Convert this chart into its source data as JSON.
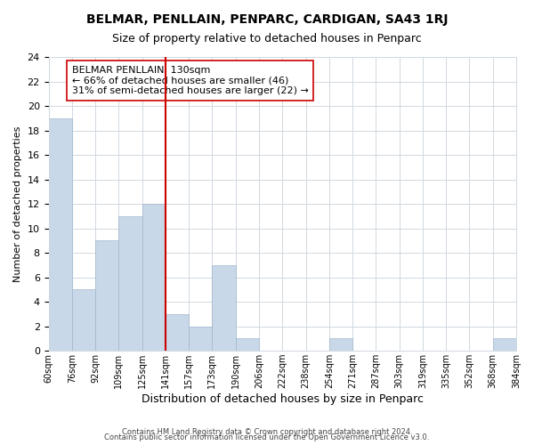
{
  "title": "BELMAR, PENLLAIN, PENPARC, CARDIGAN, SA43 1RJ",
  "subtitle": "Size of property relative to detached houses in Penparc",
  "xlabel": "Distribution of detached houses by size in Penparc",
  "ylabel": "Number of detached properties",
  "bar_color": "#c8d8e8",
  "bar_edgecolor": "#a0b8cc",
  "bins": [
    "60sqm",
    "76sqm",
    "92sqm",
    "109sqm",
    "125sqm",
    "141sqm",
    "157sqm",
    "173sqm",
    "190sqm",
    "206sqm",
    "222sqm",
    "238sqm",
    "254sqm",
    "271sqm",
    "287sqm",
    "303sqm",
    "319sqm",
    "335sqm",
    "352sqm",
    "368sqm",
    "384sqm"
  ],
  "values": [
    19,
    5,
    9,
    11,
    12,
    3,
    2,
    7,
    1,
    0,
    0,
    0,
    1,
    0,
    0,
    0,
    0,
    0,
    0,
    1
  ],
  "vline_x": 4.5,
  "vline_color": "#cc0000",
  "annotation_title": "BELMAR PENLLAIN: 130sqm",
  "annotation_line1": "← 66% of detached houses are smaller (46)",
  "annotation_line2": "31% of semi-detached houses are larger (22) →",
  "ylim": [
    0,
    24
  ],
  "yticks": [
    0,
    2,
    4,
    6,
    8,
    10,
    12,
    14,
    16,
    18,
    20,
    22,
    24
  ],
  "footer1": "Contains HM Land Registry data © Crown copyright and database right 2024.",
  "footer2": "Contains public sector information licensed under the Open Government Licence v3.0.",
  "background_color": "#ffffff",
  "grid_color": "#d0d8e0"
}
